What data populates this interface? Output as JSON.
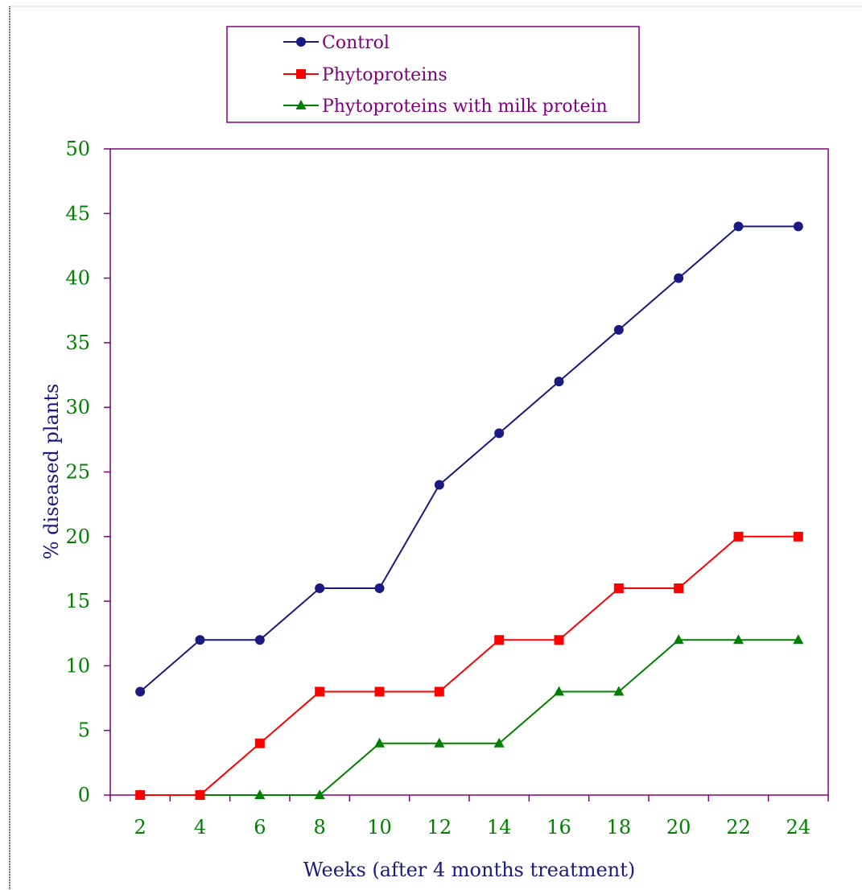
{
  "chart_data": {
    "type": "line",
    "x": [
      2,
      4,
      6,
      8,
      10,
      12,
      14,
      16,
      18,
      20,
      22,
      24
    ],
    "series": [
      {
        "name": "Control",
        "color": "#1a1a80",
        "marker": "circle",
        "values": [
          8,
          12,
          12,
          16,
          16,
          24,
          28,
          32,
          36,
          40,
          44,
          44
        ]
      },
      {
        "name": "Phytoproteins",
        "color": "#ff0000",
        "marker": "square",
        "values": [
          0,
          0,
          4,
          8,
          8,
          8,
          12,
          12,
          16,
          16,
          20,
          20
        ]
      },
      {
        "name": "Phytoproteins with milk protein",
        "color": "#008000",
        "marker": "triangle",
        "values": [
          0,
          0,
          0,
          0,
          4,
          4,
          4,
          8,
          8,
          12,
          12,
          12
        ]
      }
    ],
    "xlabel": "Weeks (after 4 months treatment)",
    "ylabel": "% diseased plants",
    "ylim": [
      0,
      50
    ],
    "yticks": [
      0,
      5,
      10,
      15,
      20,
      25,
      30,
      35,
      40,
      45,
      50
    ],
    "grid": false,
    "legend_position": "top",
    "colors": {
      "frame": "#800080",
      "tick_labels": "#008000",
      "axis_titles": "#1a1a80",
      "legend_text": "#800080"
    }
  }
}
